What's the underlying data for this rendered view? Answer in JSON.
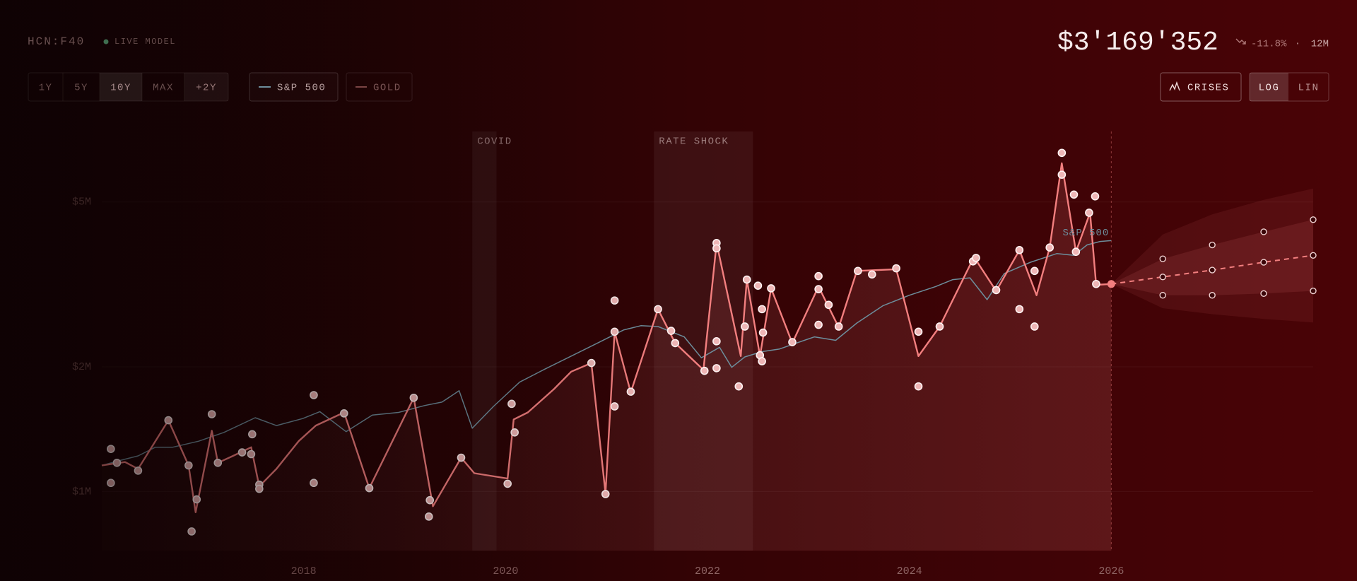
{
  "header": {
    "ticker": "HCN:F40",
    "status": "LIVE MODEL",
    "price": "$3'169'352",
    "change": "-11.8%",
    "separator": "·",
    "period": "12M"
  },
  "controls": {
    "ranges": [
      "1Y",
      "5Y",
      "10Y",
      "MAX",
      "+2Y"
    ],
    "active_range": "10Y",
    "gold": "GOLD",
    "crises": "CRISES",
    "scales": [
      "LOG",
      "LIN"
    ],
    "active_scale": "LOG"
  },
  "chart_data": {
    "type": "line",
    "log_scale": true,
    "grid": true,
    "xlim": [
      2016,
      2028
    ],
    "xticks": [
      2018,
      2020,
      2022,
      2024,
      2026
    ],
    "ylim": [
      720000,
      7400000
    ],
    "yticks": [
      {
        "value": 1000000,
        "label": "$1M"
      },
      {
        "value": 2000000,
        "label": "$2M"
      },
      {
        "value": 5000000,
        "label": "$5M"
      }
    ],
    "series": [
      {
        "color": "#f27f7f",
        "x": [
          2016.0,
          2016.23,
          2016.36,
          2016.66,
          2016.86,
          2016.93,
          2017.09,
          2017.15,
          2017.3,
          2017.48,
          2017.56,
          2017.73,
          2017.95,
          2018.12,
          2018.4,
          2018.65,
          2019.09,
          2019.28,
          2019.56,
          2019.69,
          2020.02,
          2020.08,
          2020.22,
          2020.48,
          2020.65,
          2020.85,
          2020.99,
          2021.08,
          2021.24,
          2021.51,
          2021.68,
          2021.96,
          2022.09,
          2022.33,
          2022.39,
          2022.52,
          2022.63,
          2022.84,
          2023.1,
          2023.3,
          2023.48,
          2023.87,
          2024.09,
          2024.3,
          2024.64,
          2024.86,
          2025.09,
          2025.26,
          2025.39,
          2025.51,
          2025.65,
          2025.79,
          2025.85,
          2026.0
        ],
        "values": [
          1156000,
          1178000,
          1134000,
          1486000,
          1156000,
          891000,
          1402000,
          1173000,
          1219000,
          1279000,
          1029000,
          1134000,
          1323000,
          1443000,
          1552000,
          1019000,
          1684000,
          921000,
          1207000,
          1107000,
          1075000,
          1493000,
          1552000,
          1768000,
          1947000,
          2043000,
          990000,
          2431000,
          1734000,
          2756000,
          2282000,
          1966000,
          3980000,
          2123000,
          3248000,
          2123000,
          3094000,
          2282000,
          3125000,
          2490000,
          3408000,
          3441000,
          2123000,
          2502000,
          3683000,
          3049000,
          3827000,
          2977000,
          3882000,
          6200000,
          3791000,
          4710000,
          3155000,
          3169352
        ]
      },
      {
        "name": "S&P 500",
        "color": "#6d8e9c",
        "x": [
          2016.0,
          2016.19,
          2016.36,
          2016.53,
          2016.7,
          2016.96,
          2017.21,
          2017.52,
          2017.73,
          2017.99,
          2018.16,
          2018.42,
          2018.68,
          2018.94,
          2019.2,
          2019.37,
          2019.54,
          2019.67,
          2019.88,
          2020.14,
          2020.39,
          2020.65,
          2020.91,
          2021.17,
          2021.34,
          2021.51,
          2021.77,
          2021.94,
          2022.12,
          2022.24,
          2022.37,
          2022.54,
          2022.71,
          2022.88,
          2023.06,
          2023.27,
          2023.48,
          2023.74,
          2024.0,
          2024.26,
          2024.43,
          2024.6,
          2024.77,
          2024.94,
          2025.2,
          2025.46,
          2025.63,
          2025.76,
          2025.89,
          2026.0
        ],
        "values": [
          1156000,
          1190000,
          1219000,
          1279000,
          1279000,
          1323000,
          1389000,
          1507000,
          1443000,
          1500000,
          1559000,
          1395000,
          1529000,
          1552000,
          1613000,
          1644000,
          1751000,
          1422000,
          1605000,
          1837000,
          1975000,
          2123000,
          2282000,
          2455000,
          2514000,
          2502000,
          2362000,
          2103000,
          2229000,
          1994000,
          2113000,
          2176000,
          2207000,
          2282000,
          2362000,
          2317000,
          2551000,
          2810000,
          2977000,
          3125000,
          3248000,
          3280000,
          2906000,
          3359000,
          3577000,
          3753000,
          3716000,
          3938000,
          4016000,
          4035000
        ]
      }
    ],
    "markers": {
      "color": "#eeb6b6",
      "x": [
        2016.09,
        2016.09,
        2016.15,
        2016.36,
        2016.66,
        2016.86,
        2016.89,
        2016.94,
        2017.09,
        2017.15,
        2017.39,
        2017.49,
        2017.48,
        2017.56,
        2017.56,
        2018.1,
        2018.1,
        2018.4,
        2018.65,
        2019.09,
        2019.25,
        2019.24,
        2019.56,
        2020.02,
        2020.06,
        2020.09,
        2020.85,
        2020.99,
        2021.08,
        2021.08,
        2021.08,
        2021.24,
        2021.51,
        2021.64,
        2021.68,
        2021.97,
        2022.09,
        2022.09,
        2022.09,
        2022.09,
        2022.31,
        2022.37,
        2022.39,
        2022.5,
        2022.52,
        2022.54,
        2022.55,
        2022.54,
        2022.63,
        2022.84,
        2023.1,
        2023.1,
        2023.1,
        2023.2,
        2023.3,
        2023.49,
        2023.63,
        2023.87,
        2024.09,
        2024.09,
        2024.3,
        2024.63,
        2024.66,
        2024.86,
        2025.09,
        2025.09,
        2025.24,
        2025.24,
        2025.39,
        2025.51,
        2025.51,
        2025.63,
        2025.65,
        2025.78,
        2025.84,
        2025.85
      ],
      "values": [
        1267000,
        1049000,
        1173000,
        1123000,
        1486000,
        1156000,
        801000,
        957000,
        1537000,
        1173000,
        1243000,
        1375000,
        1231000,
        1039000,
        1015000,
        1709000,
        1049000,
        1544000,
        1019000,
        1684000,
        953000,
        870000,
        1207000,
        1044000,
        1628000,
        1389000,
        2043000,
        986000,
        2892000,
        2431000,
        1605000,
        1742000,
        2756000,
        2443000,
        2282000,
        1956000,
        3980000,
        3864000,
        2305000,
        1985000,
        1794000,
        2502000,
        3248000,
        3140000,
        2133000,
        2756000,
        2419000,
        2063000,
        3094000,
        2294000,
        3311000,
        3080000,
        2526000,
        2823000,
        2502000,
        3408000,
        3342000,
        3458000,
        2431000,
        1794000,
        2502000,
        3594000,
        3664000,
        3064000,
        3827000,
        2756000,
        3408000,
        2502000,
        3882000,
        6570000,
        5820000,
        5210000,
        3791000,
        4710000,
        5160000,
        3170000
      ]
    },
    "forecast": {
      "color": "#f27f7f",
      "x": [
        2026.0,
        2026.51,
        2027.0,
        2027.51,
        2028.0
      ],
      "median": [
        3169352,
        3296000,
        3425000,
        3577000,
        3716000
      ],
      "upper": [
        3169352,
        3646000,
        3938000,
        4236000,
        4532000
      ],
      "lower": [
        3169352,
        2977000,
        2977000,
        3006000,
        3050000
      ],
      "band_upper": [
        3169352,
        4174000,
        4670000,
        5060000,
        5390000
      ],
      "band_lower": [
        3169352,
        2770000,
        2680000,
        2610000,
        2560000
      ]
    },
    "crises": [
      {
        "label": "COVID",
        "start": 2019.67,
        "end": 2019.91
      },
      {
        "label": "RATE SHOCK",
        "start": 2021.47,
        "end": 2022.45
      }
    ]
  }
}
